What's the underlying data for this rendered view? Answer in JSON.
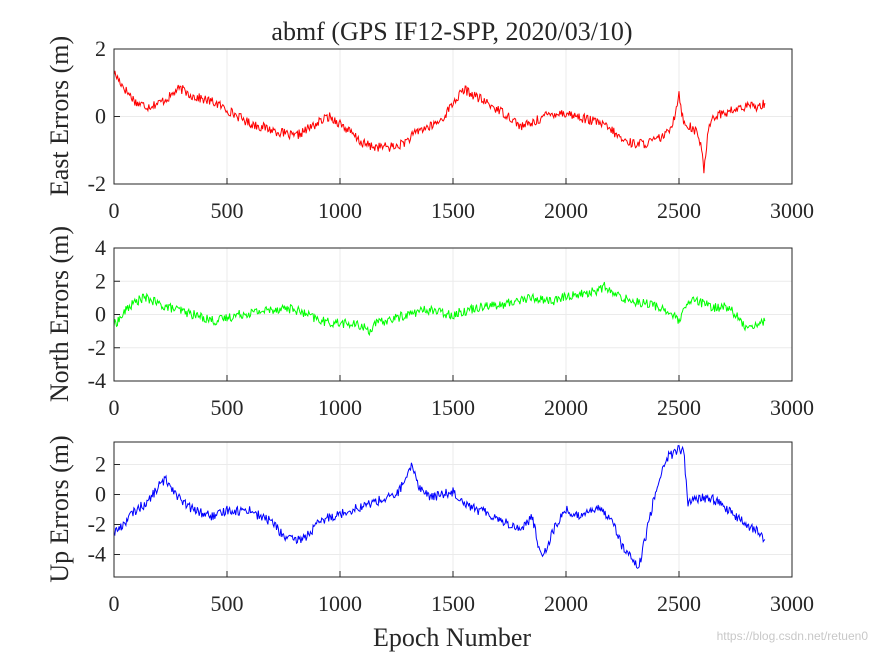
{
  "figure": {
    "title": "abmf (GPS IF12-SPP, 2020/03/10)",
    "xlabel": "Epoch Number",
    "watermark": "https://blog.csdn.net/retuen0"
  },
  "chart_data": [
    {
      "type": "line",
      "ylabel": "East Errors (m)",
      "color": "#ff0000",
      "xlim": [
        0,
        3000
      ],
      "ylim": [
        -2,
        2
      ],
      "xticks": [
        "0",
        "500",
        "1000",
        "1500",
        "2000",
        "2500",
        "3000"
      ],
      "yticks": [
        "2",
        "0",
        "-2"
      ],
      "grid": true,
      "series": [
        {
          "x": [
            0,
            20,
            50,
            100,
            150,
            200,
            250,
            280,
            300,
            350,
            400,
            450,
            500,
            550,
            600,
            650,
            700,
            750,
            800,
            850,
            900,
            950,
            1000,
            1050,
            1100,
            1150,
            1200,
            1250,
            1300,
            1350,
            1400,
            1450,
            1500,
            1550,
            1600,
            1650,
            1700,
            1750,
            1800,
            1850,
            1900,
            1950,
            2000,
            2050,
            2100,
            2150,
            2200,
            2250,
            2300,
            2350,
            2400,
            2450,
            2480,
            2500,
            2520,
            2550,
            2580,
            2600,
            2610,
            2630,
            2650,
            2700,
            2750,
            2800,
            2850,
            2880
          ],
          "y": [
            1.3,
            1.1,
            0.8,
            0.4,
            0.3,
            0.4,
            0.6,
            0.8,
            0.8,
            0.6,
            0.5,
            0.4,
            0.2,
            0.0,
            -0.2,
            -0.3,
            -0.4,
            -0.5,
            -0.6,
            -0.4,
            -0.2,
            0.0,
            -0.2,
            -0.5,
            -0.8,
            -0.9,
            -0.9,
            -0.9,
            -0.7,
            -0.4,
            -0.3,
            -0.1,
            0.4,
            0.8,
            0.6,
            0.4,
            0.2,
            0.0,
            -0.3,
            -0.2,
            0.0,
            0.1,
            0.1,
            0.0,
            -0.1,
            -0.2,
            -0.4,
            -0.7,
            -0.8,
            -0.8,
            -0.7,
            -0.5,
            0.0,
            0.7,
            -0.2,
            -0.3,
            -0.5,
            -0.9,
            -1.7,
            -0.3,
            0.0,
            0.1,
            0.2,
            0.3,
            0.3,
            0.4
          ]
        }
      ]
    },
    {
      "type": "line",
      "ylabel": "North Errors (m)",
      "color": "#00ff00",
      "xlim": [
        0,
        3000
      ],
      "ylim": [
        -4,
        4
      ],
      "xticks": [
        "0",
        "500",
        "1000",
        "1500",
        "2000",
        "2500",
        "3000"
      ],
      "yticks": [
        "4",
        "2",
        "0",
        "-2",
        "-4"
      ],
      "grid": true,
      "series": [
        {
          "x": [
            0,
            30,
            60,
            100,
            130,
            160,
            200,
            250,
            300,
            350,
            400,
            450,
            500,
            550,
            600,
            650,
            700,
            750,
            800,
            850,
            900,
            950,
            1000,
            1050,
            1100,
            1130,
            1150,
            1200,
            1250,
            1300,
            1350,
            1400,
            1450,
            1500,
            1550,
            1600,
            1650,
            1700,
            1750,
            1800,
            1850,
            1900,
            1950,
            2000,
            2050,
            2100,
            2150,
            2170,
            2200,
            2250,
            2300,
            2350,
            2400,
            2450,
            2500,
            2530,
            2560,
            2600,
            2650,
            2700,
            2730,
            2750,
            2780,
            2800,
            2850,
            2880
          ],
          "y": [
            -0.6,
            -0.2,
            0.4,
            0.8,
            1.0,
            0.9,
            0.6,
            0.4,
            0.2,
            0.0,
            -0.2,
            -0.4,
            -0.2,
            0.0,
            0.1,
            0.2,
            0.3,
            0.4,
            0.3,
            0.0,
            -0.3,
            -0.5,
            -0.5,
            -0.6,
            -0.7,
            -1.0,
            -0.6,
            -0.4,
            -0.2,
            0.0,
            0.2,
            0.3,
            0.1,
            0.0,
            0.2,
            0.4,
            0.6,
            0.5,
            0.7,
            0.9,
            1.0,
            0.9,
            0.8,
            1.1,
            1.2,
            1.3,
            1.5,
            1.7,
            1.3,
            1.0,
            0.8,
            0.7,
            0.5,
            0.2,
            -0.4,
            0.4,
            0.9,
            0.7,
            0.4,
            0.5,
            0.3,
            0.0,
            -0.6,
            -0.7,
            -0.6,
            -0.4
          ]
        }
      ]
    },
    {
      "type": "line",
      "ylabel": "Up Errors (m)",
      "color": "#0000ff",
      "xlim": [
        0,
        3000
      ],
      "ylim": [
        -5.5,
        3.5
      ],
      "xticks": [
        "0",
        "500",
        "1000",
        "1500",
        "2000",
        "2500",
        "3000"
      ],
      "yticks": [
        "2",
        "0",
        "-2",
        "-4"
      ],
      "grid": true,
      "series": [
        {
          "x": [
            0,
            30,
            60,
            100,
            150,
            200,
            230,
            260,
            300,
            350,
            400,
            450,
            500,
            550,
            600,
            650,
            700,
            750,
            800,
            850,
            900,
            950,
            1000,
            1050,
            1100,
            1150,
            1200,
            1250,
            1300,
            1320,
            1350,
            1400,
            1450,
            1500,
            1550,
            1600,
            1650,
            1700,
            1750,
            1800,
            1850,
            1880,
            1900,
            1950,
            2000,
            2050,
            2100,
            2150,
            2200,
            2250,
            2300,
            2320,
            2350,
            2400,
            2450,
            2500,
            2520,
            2540,
            2560,
            2600,
            2650,
            2700,
            2750,
            2800,
            2850,
            2880
          ],
          "y": [
            -2.5,
            -2.2,
            -1.6,
            -1.0,
            -0.5,
            0.6,
            1.0,
            0.4,
            -0.5,
            -1.0,
            -1.3,
            -1.5,
            -1.0,
            -1.1,
            -1.0,
            -1.5,
            -1.8,
            -2.8,
            -3.1,
            -2.8,
            -2.0,
            -1.5,
            -1.3,
            -1.0,
            -0.8,
            -0.5,
            -0.3,
            0.0,
            1.2,
            2.0,
            0.5,
            -0.2,
            0.0,
            0.2,
            -0.5,
            -1.0,
            -1.2,
            -1.6,
            -2.0,
            -2.3,
            -1.5,
            -3.5,
            -4.0,
            -2.2,
            -1.0,
            -1.5,
            -1.0,
            -1.0,
            -1.5,
            -3.5,
            -4.5,
            -5.0,
            -3.0,
            0.5,
            2.5,
            3.0,
            3.0,
            -0.5,
            -0.5,
            -0.2,
            -0.3,
            -0.8,
            -1.5,
            -2.0,
            -2.5,
            -3.0
          ]
        }
      ]
    }
  ]
}
